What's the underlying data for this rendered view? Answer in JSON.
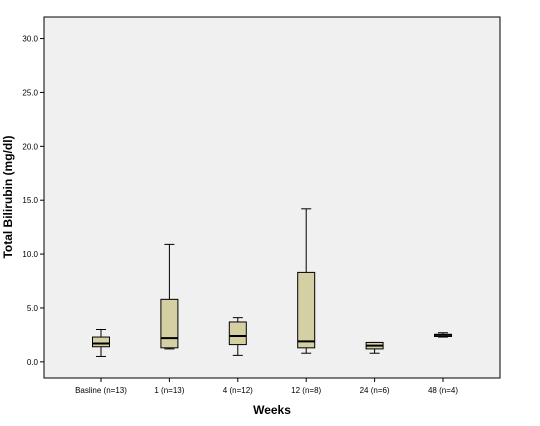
{
  "chart_data": {
    "type": "boxplot",
    "title": "",
    "xlabel": "Weeks",
    "ylabel": "Total Bilirubin (mg/dl)",
    "ylim": [
      -1.5,
      32.0
    ],
    "yticks": [
      0,
      5,
      10,
      15,
      20,
      25,
      30
    ],
    "ytick_labels": [
      "0.0",
      "5.0",
      "10.0",
      "15.0",
      "20.0",
      "25.0",
      "30.0"
    ],
    "grid": false,
    "background_color": "#f0f0f0",
    "box_fill": "#d4d0a3",
    "categories": [
      "Basline (n=13)",
      "1 (n=13)",
      "4 (n=12)",
      "12 (n=8)",
      "24 (n=6)",
      "48 (n=4)"
    ],
    "boxes": [
      {
        "min": 0.5,
        "q1": 1.4,
        "median": 1.7,
        "q3": 2.3,
        "max": 3.0
      },
      {
        "min": 1.2,
        "q1": 1.3,
        "median": 2.2,
        "q3": 5.8,
        "max": 10.9
      },
      {
        "min": 0.6,
        "q1": 1.6,
        "median": 2.4,
        "q3": 3.7,
        "max": 4.1
      },
      {
        "min": 0.8,
        "q1": 1.3,
        "median": 1.9,
        "q3": 8.3,
        "max": 14.2
      },
      {
        "min": 0.8,
        "q1": 1.2,
        "median": 1.5,
        "q3": 1.8,
        "max": 1.8
      },
      {
        "min": 2.3,
        "q1": 2.35,
        "median": 2.5,
        "q3": 2.55,
        "max": 2.7
      }
    ]
  }
}
